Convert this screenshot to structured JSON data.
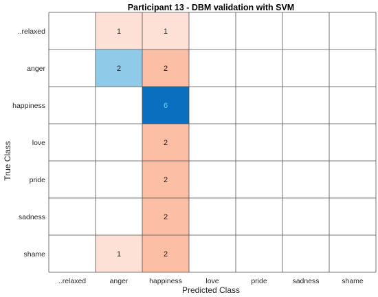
{
  "chart_data": {
    "type": "heatmap",
    "title": "Participant 13 - DBM validation with SVM",
    "xlabel": "Predicted Class",
    "ylabel": "True Class",
    "x_categories": [
      "..relaxed",
      "anger",
      "happiness",
      "love",
      "pride",
      "sadness",
      "shame"
    ],
    "y_categories": [
      "..relaxed",
      "anger",
      "happiness",
      "love",
      "pride",
      "sadness",
      "shame"
    ],
    "values": [
      [
        0,
        1,
        1,
        0,
        0,
        0,
        0
      ],
      [
        0,
        2,
        2,
        0,
        0,
        0,
        0
      ],
      [
        0,
        0,
        6,
        0,
        0,
        0,
        0
      ],
      [
        0,
        0,
        2,
        0,
        0,
        0,
        0
      ],
      [
        0,
        0,
        2,
        0,
        0,
        0,
        0
      ],
      [
        0,
        0,
        2,
        0,
        0,
        0,
        0
      ],
      [
        0,
        1,
        2,
        0,
        0,
        0,
        0
      ]
    ],
    "grid": true,
    "colors": {
      "correct_low": "#8fcbe8",
      "correct_high": "#0a6fbf",
      "incorrect_low": "#fde0d6",
      "incorrect_high": "#fcbfa6",
      "correct_high_text": "#6cd3ee",
      "text": "#1a1a1a",
      "grid": "#4d4d4d"
    }
  }
}
